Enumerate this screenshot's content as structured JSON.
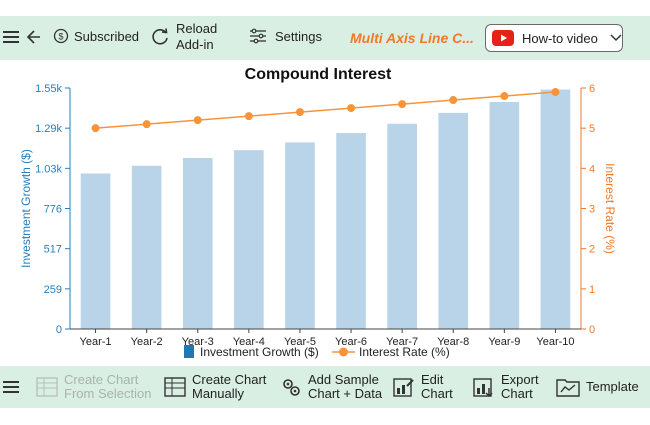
{
  "toolbar": {
    "subscribed_label": "Subscribed",
    "reload_line1": "Reload",
    "reload_line2": "Add-in",
    "settings_label": "Settings",
    "app_title": "Multi Axis Line C...",
    "howto_label": "How-to video"
  },
  "bottom_toolbar": {
    "create_from_selection_1": "Create Chart",
    "create_from_selection_2": "From Selection",
    "create_manually_1": "Create Chart",
    "create_manually_2": "Manually",
    "add_sample_1": "Add Sample",
    "add_sample_2": "Chart + Data",
    "edit_1": "Edit",
    "edit_2": "Chart",
    "export_1": "Export",
    "export_2": "Chart",
    "template": "Template"
  },
  "colors": {
    "toolbar_bg": "#d9efe3",
    "bar_fill": "#b9d3e8",
    "bar_legend": "#1f77b4",
    "line": "#f7943a",
    "left_axis": "#2a7fb8",
    "right_axis": "#f07a2a",
    "brand": "#f07a2a",
    "youtube_red": "#e62117"
  },
  "icons": {
    "menu": "hamburger-menu-icon",
    "back": "back-arrow-icon",
    "subscribed": "dollar-circle-icon",
    "reload": "reload-icon",
    "settings": "sliders-icon",
    "youtube": "youtube-play-icon",
    "dropdown": "chevron-down-icon"
  },
  "chart_data": {
    "type": "bar",
    "title": "Compound Interest",
    "categories": [
      "Year-1",
      "Year-2",
      "Year-3",
      "Year-4",
      "Year-5",
      "Year-6",
      "Year-7",
      "Year-8",
      "Year-9",
      "Year-10"
    ],
    "series": [
      {
        "name": "Investment Growth ($)",
        "type": "bar",
        "axis": "left",
        "values": [
          1.0,
          1.05,
          1.1,
          1.15,
          1.2,
          1.26,
          1.32,
          1.39,
          1.46,
          1.54
        ]
      },
      {
        "name": "Interest Rate (%)",
        "type": "line",
        "axis": "right",
        "values": [
          5.0,
          5.1,
          5.2,
          5.3,
          5.4,
          5.5,
          5.6,
          5.7,
          5.8,
          5.9
        ]
      }
    ],
    "ylabel_left": "Investment Growth ($)",
    "ylabel_right": "Interest Rate (%)",
    "yticks_left": [
      "0",
      "259",
      "517",
      "776",
      "1.03k",
      "1.29k",
      "1.55k"
    ],
    "ylim_left": [
      0,
      1.55
    ],
    "yticks_right": [
      "0",
      "1",
      "2",
      "3",
      "4",
      "5",
      "6"
    ],
    "ylim_right": [
      0,
      6
    ],
    "grid": false,
    "legend_position": "bottom"
  }
}
